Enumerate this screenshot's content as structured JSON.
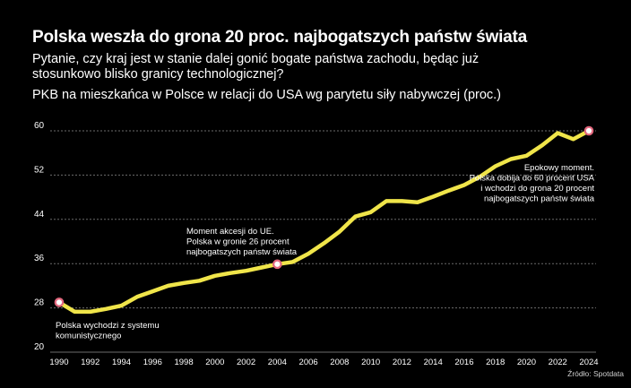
{
  "header": {
    "title": "Polska weszła do grona 20 proc. najbogatszych państw świata",
    "subtitle": "Pytanie, czy kraj jest w stanie dalej gonić bogate państwa zachodu, będąc już stosunkowo blisko granicy technologicznej?",
    "measure": "PKB na mieszkańca w Polsce w relacji do USA wg parytetu siły nabywczej (proc.)"
  },
  "source": "Źródło: Spotdata",
  "colors": {
    "background": "#000000",
    "line": "#f0e54a",
    "marker": "#e2677d",
    "grid": "#6b6b6b",
    "text": "#ffffff"
  },
  "chart_data": {
    "type": "line",
    "title": "",
    "xlabel": "",
    "ylabel": "",
    "grid": true,
    "ylim": [
      20,
      60
    ],
    "yticks": [
      20,
      28,
      36,
      44,
      52,
      60
    ],
    "xlim": [
      1990,
      2024
    ],
    "xticks": [
      1990,
      1992,
      1994,
      1996,
      1998,
      2000,
      2002,
      2004,
      2006,
      2008,
      2010,
      2012,
      2014,
      2016,
      2018,
      2020,
      2022,
      2024
    ],
    "x": [
      1990,
      1991,
      1992,
      1993,
      1994,
      1995,
      1996,
      1997,
      1998,
      1999,
      2000,
      2001,
      2002,
      2003,
      2004,
      2005,
      2006,
      2007,
      2008,
      2009,
      2010,
      2011,
      2012,
      2013,
      2014,
      2015,
      2016,
      2017,
      2018,
      2019,
      2020,
      2021,
      2022,
      2023,
      2024
    ],
    "series": [
      {
        "values": [
          29.0,
          27.3,
          27.3,
          27.8,
          28.4,
          30.0,
          31.0,
          32.0,
          32.5,
          32.9,
          33.8,
          34.3,
          34.7,
          35.3,
          35.9,
          36.3,
          37.8,
          39.7,
          41.8,
          44.5,
          45.3,
          47.3,
          47.3,
          47.1,
          48.1,
          49.2,
          50.2,
          51.7,
          53.6,
          54.9,
          55.5,
          57.4,
          59.6,
          58.5,
          60.0
        ]
      }
    ],
    "annotations": [
      {
        "x": 1990,
        "y": 29.0,
        "marker": true,
        "lines": [
          "Polska wychodzi z systemu",
          "komunistycznego"
        ]
      },
      {
        "x": 2004,
        "y": 35.9,
        "marker": true,
        "lines": [
          "Moment akcesji do UE.",
          "Polska w gronie 26 procent",
          "najbogatszych państw świata"
        ]
      },
      {
        "x": 2024,
        "y": 60.0,
        "marker": true,
        "lines": [
          "Epokowy moment.",
          "Polska dobija do 60 procent USA",
          "i wchodzi do grona 20 procent",
          "najbogatszych państw świata"
        ]
      }
    ]
  }
}
